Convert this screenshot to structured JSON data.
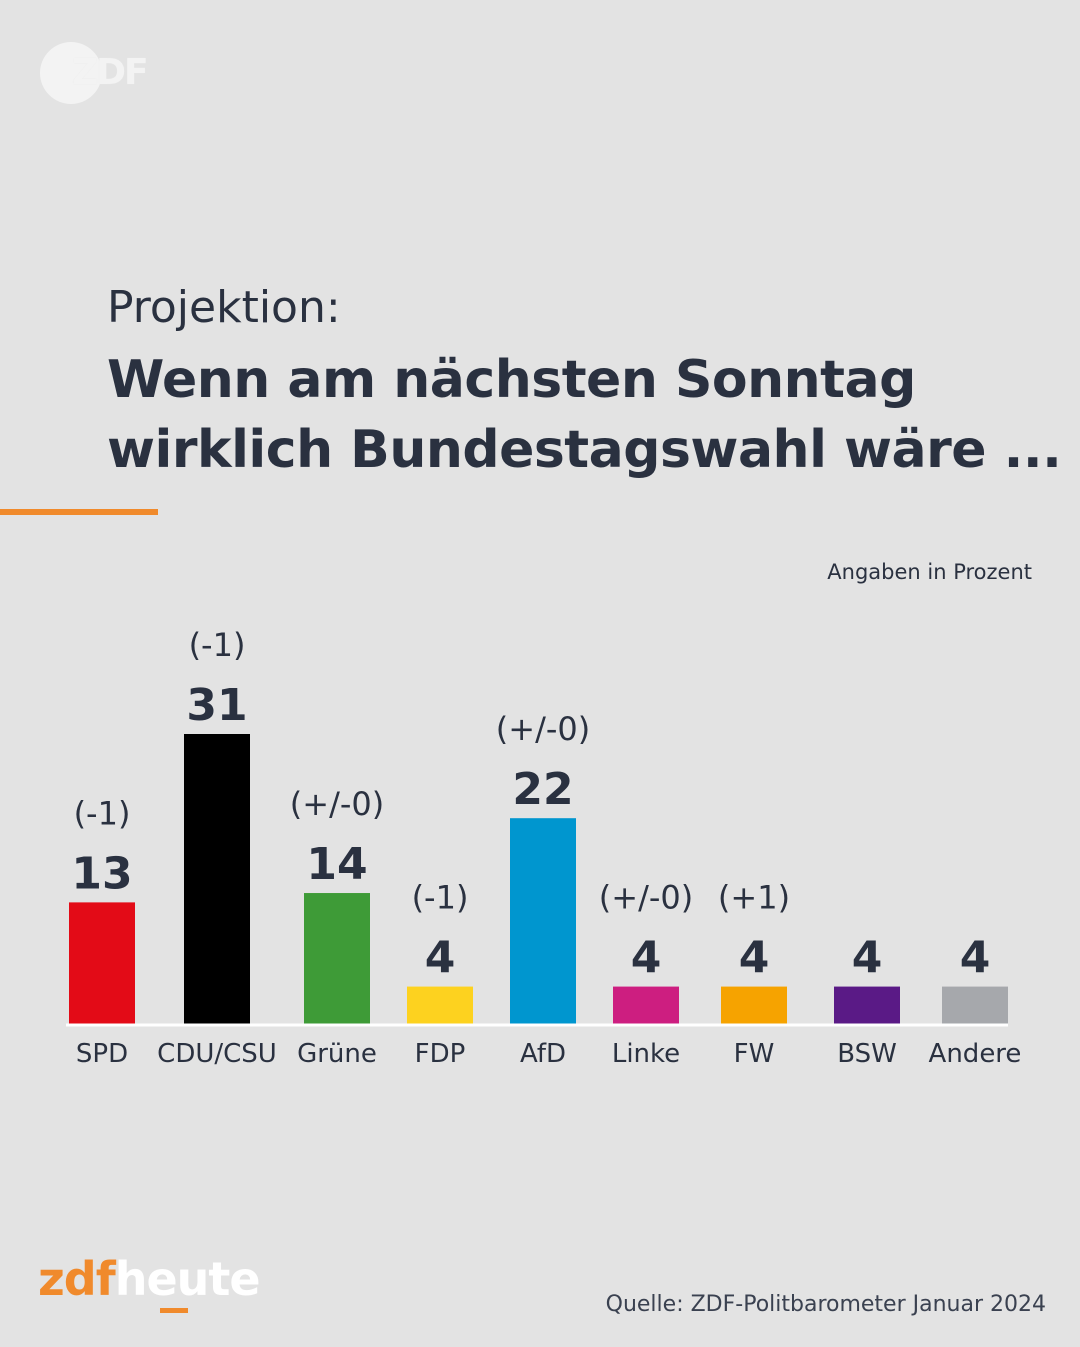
{
  "header": {
    "logo_text": "ZDF",
    "subtitle": "Projektion:",
    "title_lines": [
      "Wenn am nächsten Sonntag",
      "wirklich Bundestagswahl wäre ..."
    ],
    "unit_note": "Angaben in Prozent",
    "accent_color": "#f08a2c"
  },
  "chart_data": {
    "type": "bar",
    "title": "Wenn am nächsten Sonntag wirklich Bundestagswahl wäre ...",
    "subtitle": "Projektion:",
    "xlabel": "",
    "ylabel": "",
    "unit": "Angaben in Prozent",
    "ylim": [
      0,
      31
    ],
    "grid": false,
    "categories": [
      "SPD",
      "CDU/CSU",
      "Grüne",
      "FDP",
      "AfD",
      "Linke",
      "FW",
      "BSW",
      "Andere"
    ],
    "values": [
      13,
      31,
      14,
      4,
      22,
      4,
      4,
      4,
      4
    ],
    "changes": [
      "(-1)",
      "(-1)",
      "(+/-0)",
      "(-1)",
      "(+/-0)",
      "(+/-0)",
      "(+1)",
      "",
      ""
    ],
    "colors": [
      "#e30b17",
      "#000000",
      "#3e9b37",
      "#fdd21f",
      "#0096cf",
      "#cd1e80",
      "#f6a300",
      "#5a1a86",
      "#a6a8ac"
    ]
  },
  "footer": {
    "brand_zdf": "zdf",
    "brand_heute": "heute",
    "source": "Quelle: ZDF-Politbarometer Januar 2024"
  }
}
